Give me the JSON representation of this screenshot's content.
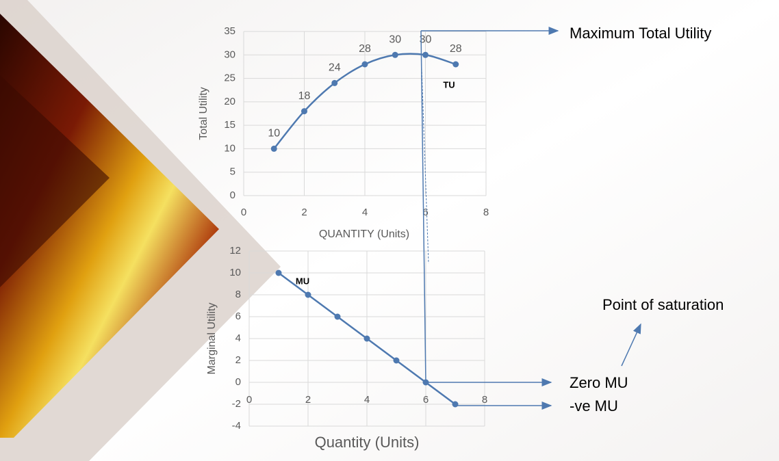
{
  "annotations": [
    "Maximum Total Utility",
    "Point of saturation",
    "Zero MU",
    "-ve MU"
  ],
  "chart_data": [
    {
      "type": "line",
      "ylabel": "Total Utility",
      "xlabel": "QUANTITY (Units)",
      "x": [
        1,
        2,
        3,
        4,
        5,
        6,
        7
      ],
      "series": [
        {
          "name": "TU",
          "color": "#4e79b0",
          "values": [
            10,
            18,
            24,
            28,
            30,
            30,
            28
          ]
        }
      ],
      "xlim": [
        0,
        8
      ],
      "xticks": [
        0,
        2,
        4,
        6,
        8
      ],
      "ylim": [
        0,
        35
      ],
      "yticks": [
        0,
        5,
        10,
        15,
        20,
        25,
        30,
        35
      ],
      "grid": true,
      "data_labels": true,
      "smooth": true
    },
    {
      "type": "line",
      "ylabel": "Marginal Utility",
      "xlabel": "Quantity (Units)",
      "x": [
        1,
        2,
        3,
        4,
        5,
        6,
        7
      ],
      "series": [
        {
          "name": "MU",
          "color": "#4e79b0",
          "values": [
            10,
            8,
            6,
            4,
            2,
            0,
            -2
          ]
        }
      ],
      "xlim": [
        0,
        8
      ],
      "xticks": [
        0,
        2,
        4,
        6,
        8
      ],
      "ylim": [
        -4,
        12
      ],
      "yticks": [
        -4,
        -2,
        0,
        2,
        4,
        6,
        8,
        10,
        12
      ],
      "grid": true,
      "data_labels": false,
      "smooth": false
    }
  ]
}
